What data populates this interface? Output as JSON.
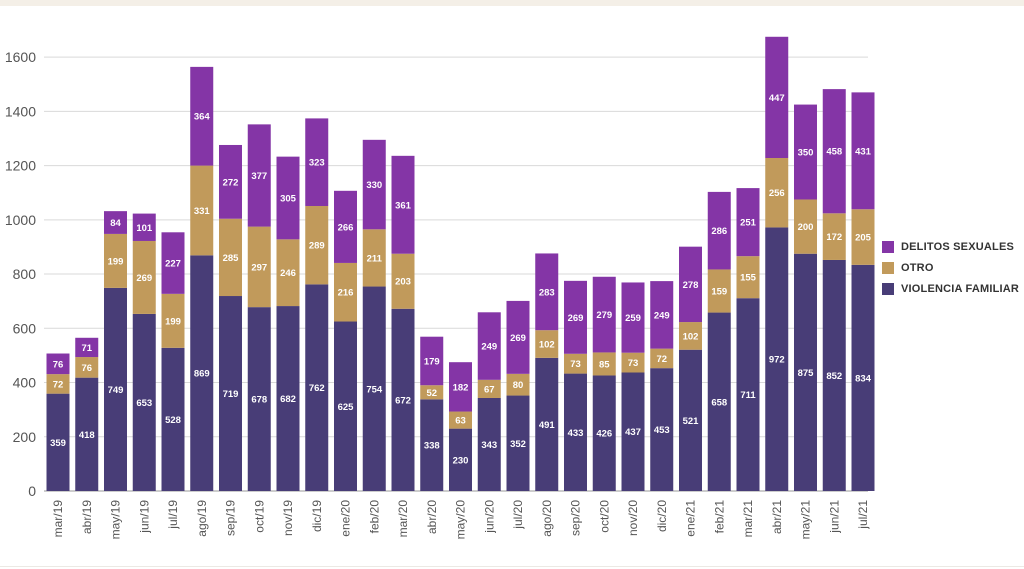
{
  "chart_data": {
    "type": "bar",
    "stacked": true,
    "categories": [
      "mar/19",
      "abr/19",
      "may/19",
      "jun/19",
      "jul/19",
      "ago/19",
      "sep/19",
      "oct/19",
      "nov/19",
      "dic/19",
      "ene/20",
      "feb/20",
      "mar/20",
      "abr/20",
      "may/20",
      "jun/20",
      "jul/20",
      "ago/20",
      "sep/20",
      "oct/20",
      "nov/20",
      "dic/20",
      "ene/21",
      "feb/21",
      "mar/21",
      "abr/21",
      "may/21",
      "jun/21",
      "jul/21"
    ],
    "series": [
      {
        "name": "VIOLENCIA FAMILIAR",
        "color": "#483d77",
        "values": [
          359,
          418,
          749,
          653,
          528,
          869,
          719,
          678,
          682,
          762,
          625,
          754,
          672,
          338,
          230,
          343,
          352,
          491,
          433,
          426,
          437,
          453,
          521,
          658,
          711,
          972,
          875,
          852,
          834
        ]
      },
      {
        "name": "OTRO",
        "color": "#c19a5b",
        "values": [
          72,
          76,
          199,
          269,
          199,
          331,
          285,
          297,
          246,
          289,
          216,
          211,
          203,
          52,
          63,
          67,
          80,
          102,
          73,
          85,
          73,
          72,
          102,
          159,
          155,
          256,
          200,
          172,
          205
        ]
      },
      {
        "name": "DELITOS SEXUALES",
        "color": "#8435a6",
        "values": [
          76,
          71,
          84,
          101,
          227,
          364,
          272,
          377,
          305,
          323,
          266,
          330,
          361,
          179,
          182,
          249,
          269,
          283,
          269,
          279,
          259,
          249,
          278,
          286,
          251,
          447,
          350,
          458,
          431
        ]
      }
    ],
    "ylim": [
      0,
      1700
    ],
    "yticks": [
      0,
      200,
      400,
      600,
      800,
      1000,
      1200,
      1400,
      1600
    ],
    "grid": true,
    "legend_position": "right",
    "legend_order": [
      "DELITOS SEXUALES",
      "OTRO",
      "VIOLENCIA FAMILIAR"
    ],
    "title": "",
    "xlabel": "",
    "ylabel": ""
  }
}
